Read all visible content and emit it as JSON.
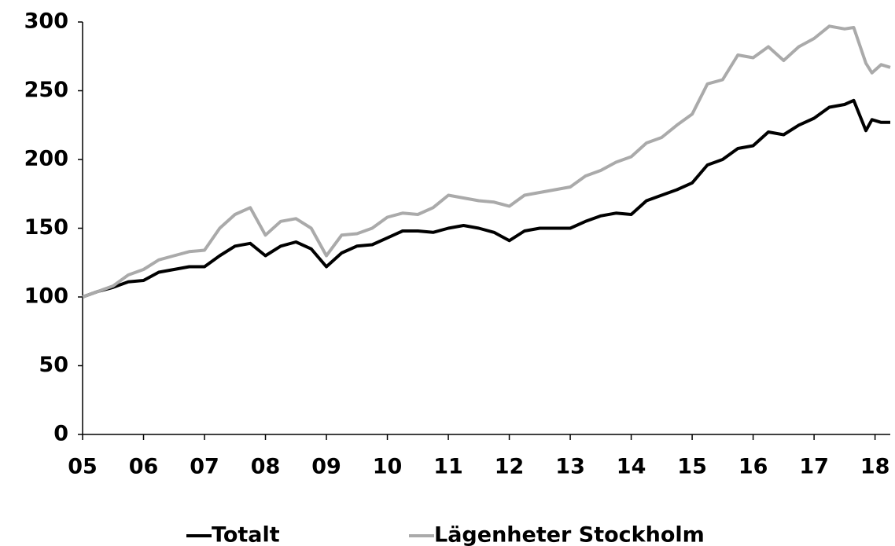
{
  "chart_data": {
    "type": "line",
    "x": [
      2005,
      2005.25,
      2005.5,
      2005.75,
      2006,
      2006.25,
      2006.5,
      2006.75,
      2007,
      2007.25,
      2007.5,
      2007.75,
      2008,
      2008.25,
      2008.5,
      2008.75,
      2009,
      2009.25,
      2009.5,
      2009.75,
      2010,
      2010.25,
      2010.5,
      2010.75,
      2011,
      2011.25,
      2011.5,
      2011.75,
      2012,
      2012.25,
      2012.5,
      2012.75,
      2013,
      2013.25,
      2013.5,
      2013.75,
      2014,
      2014.25,
      2014.5,
      2014.75,
      2015,
      2015.25,
      2015.5,
      2015.75,
      2016,
      2016.25,
      2016.5,
      2016.75,
      2017,
      2017.25,
      2017.5,
      2017.65,
      2017.85,
      2017.95,
      2018.1,
      2018.25
    ],
    "series": [
      {
        "name": "Totalt",
        "color": "#000000",
        "values": [
          100,
          104,
          107,
          111,
          112,
          118,
          120,
          122,
          122,
          130,
          137,
          139,
          130,
          137,
          140,
          135,
          122,
          132,
          137,
          138,
          143,
          148,
          148,
          147,
          150,
          152,
          150,
          147,
          141,
          148,
          150,
          150,
          150,
          155,
          159,
          161,
          160,
          170,
          174,
          178,
          183,
          196,
          200,
          208,
          210,
          220,
          218,
          225,
          230,
          238,
          240,
          243,
          221,
          229,
          227,
          227
        ]
      },
      {
        "name": "Lägenheter Stockholm",
        "color": "#aaaaaa",
        "values": [
          100,
          104,
          108,
          116,
          120,
          127,
          130,
          133,
          134,
          150,
          160,
          165,
          145,
          155,
          157,
          150,
          130,
          145,
          146,
          150,
          158,
          161,
          160,
          165,
          174,
          172,
          170,
          169,
          166,
          174,
          176,
          178,
          180,
          188,
          192,
          198,
          202,
          212,
          216,
          225,
          233,
          255,
          258,
          276,
          274,
          282,
          272,
          282,
          288,
          297,
          295,
          296,
          270,
          263,
          269,
          267
        ]
      }
    ],
    "xlim": [
      2005,
      2018.25
    ],
    "xticks": [
      {
        "value": 2005,
        "label": "05"
      },
      {
        "value": 2006,
        "label": "06"
      },
      {
        "value": 2007,
        "label": "07"
      },
      {
        "value": 2008,
        "label": "08"
      },
      {
        "value": 2009,
        "label": "09"
      },
      {
        "value": 2010,
        "label": "10"
      },
      {
        "value": 2011,
        "label": "11"
      },
      {
        "value": 2012,
        "label": "12"
      },
      {
        "value": 2013,
        "label": "13"
      },
      {
        "value": 2014,
        "label": "14"
      },
      {
        "value": 2015,
        "label": "15"
      },
      {
        "value": 2016,
        "label": "16"
      },
      {
        "value": 2017,
        "label": "17"
      },
      {
        "value": 2018,
        "label": "18"
      }
    ],
    "ylim": [
      0,
      300
    ],
    "yticks": [
      0,
      50,
      100,
      150,
      200,
      250,
      300
    ],
    "grid": false,
    "legend": "bottom"
  }
}
